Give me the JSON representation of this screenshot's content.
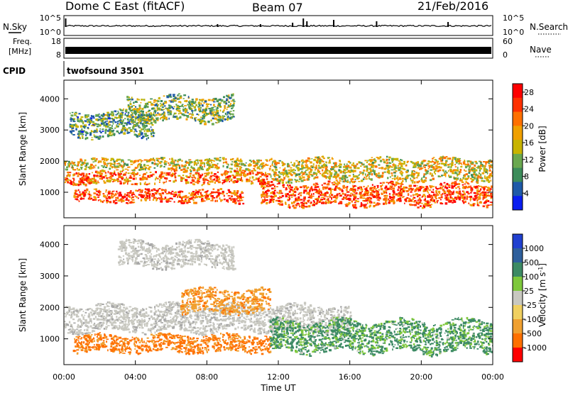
{
  "header": {
    "station": "Dome C East (fitACF)",
    "beam": "Beam 07",
    "date": "21/Feb/2016"
  },
  "nsky_panel": {
    "left_label": "N.Sky",
    "right_label": "N.Search",
    "left_ticks": [
      "10^5",
      "10^0"
    ],
    "right_ticks": [
      "10^5",
      "10^0"
    ]
  },
  "freq_panel": {
    "left_label_top": "Freq.",
    "left_label_unit": "[MHz]",
    "right_label": "Nave",
    "left_ticks": [
      "18",
      "8"
    ],
    "right_ticks": [
      "60",
      "0"
    ]
  },
  "cpid": {
    "label": "CPID",
    "value": "twofsound 3501"
  },
  "colors": {
    "power_scale": [
      "#0a1ef0",
      "#1f5aa8",
      "#3c8c5a",
      "#6aa84f",
      "#c8b400",
      "#f0a000",
      "#ff7000",
      "#ff3000",
      "#ff0000"
    ],
    "velocity_scale": [
      "#2040d0",
      "#2e5f9c",
      "#3c8a64",
      "#7ec83c",
      "#c8c8c0",
      "#f0d060",
      "#f0a030",
      "#ff7000",
      "#ff0000"
    ],
    "ground_scatter": "#a8a8a8"
  },
  "chart_data": [
    {
      "type": "heatmap",
      "title": "Power",
      "xlabel": "",
      "ylabel": "Slant Range [km]",
      "x_ticks": [
        "00:00",
        "04:00",
        "08:00",
        "12:00",
        "16:00",
        "20:00",
        "00:00"
      ],
      "y_ticks": [
        "1000",
        "2000",
        "3000",
        "4000"
      ],
      "ylim": [
        180,
        4600
      ],
      "xlim_hours": [
        0,
        24
      ],
      "colorbar": {
        "label": "Power [dB]",
        "ticks": [
          "4",
          "8",
          "12",
          "16",
          "20",
          "24",
          "28"
        ],
        "range": [
          0,
          30
        ]
      },
      "bands": [
        {
          "t_start": 0.0,
          "t_end": 11.5,
          "r_low": 1300,
          "r_high": 1700,
          "level": 22
        },
        {
          "t_start": 0.0,
          "t_end": 11.5,
          "r_low": 1750,
          "r_high": 2100,
          "level": 16
        },
        {
          "t_start": 0.5,
          "t_end": 10.0,
          "r_low": 700,
          "r_high": 1100,
          "level": 24
        },
        {
          "t_start": 11.0,
          "t_end": 24.0,
          "r_low": 600,
          "r_high": 1300,
          "level": 24
        },
        {
          "t_start": 11.5,
          "t_end": 24.0,
          "r_low": 1400,
          "r_high": 2100,
          "level": 16
        },
        {
          "t_start": 0.3,
          "t_end": 5.0,
          "r_low": 2800,
          "r_high": 3600,
          "level": 10
        },
        {
          "t_start": 3.5,
          "t_end": 9.5,
          "r_low": 3300,
          "r_high": 4100,
          "level": 12
        }
      ]
    },
    {
      "type": "heatmap",
      "title": "Velocity",
      "xlabel": "Time UT",
      "ylabel": "Slant Range [km]",
      "x_ticks": [
        "00:00",
        "04:00",
        "08:00",
        "12:00",
        "16:00",
        "20:00",
        "00:00"
      ],
      "y_ticks": [
        "1000",
        "2000",
        "3000",
        "4000"
      ],
      "ylim": [
        180,
        4600
      ],
      "xlim_hours": [
        0,
        24
      ],
      "colorbar": {
        "label": "Velocity [m s^-1]",
        "ticks": [
          "1000",
          "500",
          "100",
          "25",
          "-25",
          "-100",
          "-500",
          "-1000"
        ]
      },
      "bands": [
        {
          "t_start": 0.0,
          "t_end": 16.0,
          "r_low": 1250,
          "r_high": 2100,
          "velocity_class": "ground"
        },
        {
          "t_start": 0.5,
          "t_end": 11.5,
          "r_low": 600,
          "r_high": 1150,
          "velocity_class": "-300"
        },
        {
          "t_start": 11.5,
          "t_end": 24.0,
          "r_low": 600,
          "r_high": 1600,
          "velocity_class": "120"
        },
        {
          "t_start": 6.5,
          "t_end": 11.5,
          "r_low": 1850,
          "r_high": 2600,
          "velocity_class": "-200"
        },
        {
          "t_start": 3.0,
          "t_end": 9.5,
          "r_low": 3300,
          "r_high": 4100,
          "velocity_class": "ground"
        }
      ]
    }
  ]
}
